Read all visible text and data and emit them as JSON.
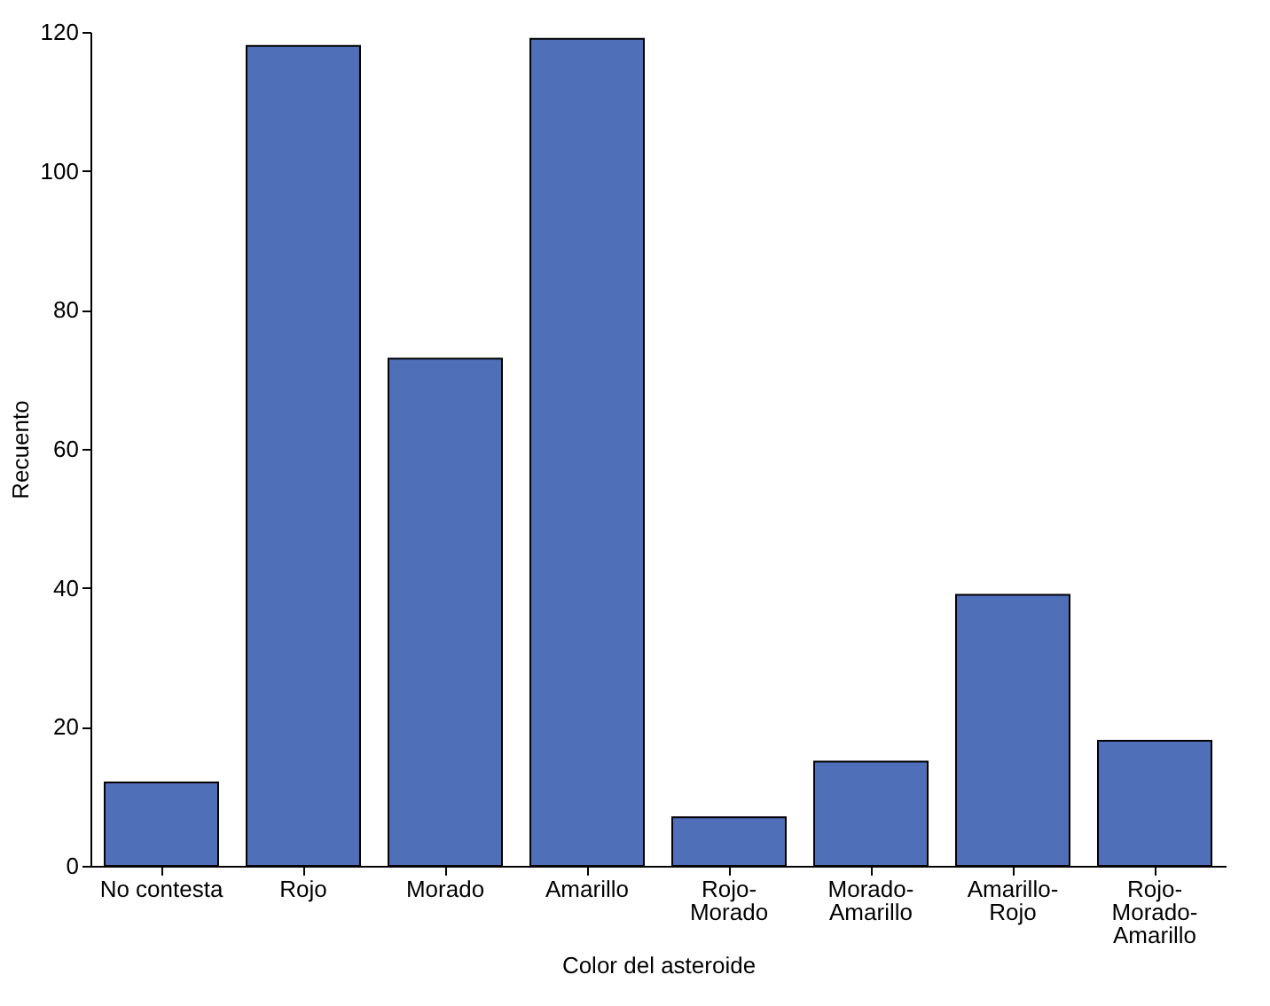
{
  "chart_data": {
    "type": "bar",
    "xlabel": "Color del asteroide",
    "ylabel": "Recuento",
    "categories": [
      "No contesta",
      "Rojo",
      "Morado",
      "Amarillo",
      "Rojo-Morado",
      "Morado-Amarillo",
      "Amarillo-Rojo",
      "Rojo-Morado-Amarillo"
    ],
    "values": [
      12,
      118,
      73,
      119,
      7,
      15,
      39,
      18
    ],
    "color": "#4f6fb8",
    "ylim": [
      0,
      120
    ],
    "yticks": [
      0,
      20,
      40,
      60,
      80,
      100,
      120
    ],
    "grid": false
  }
}
